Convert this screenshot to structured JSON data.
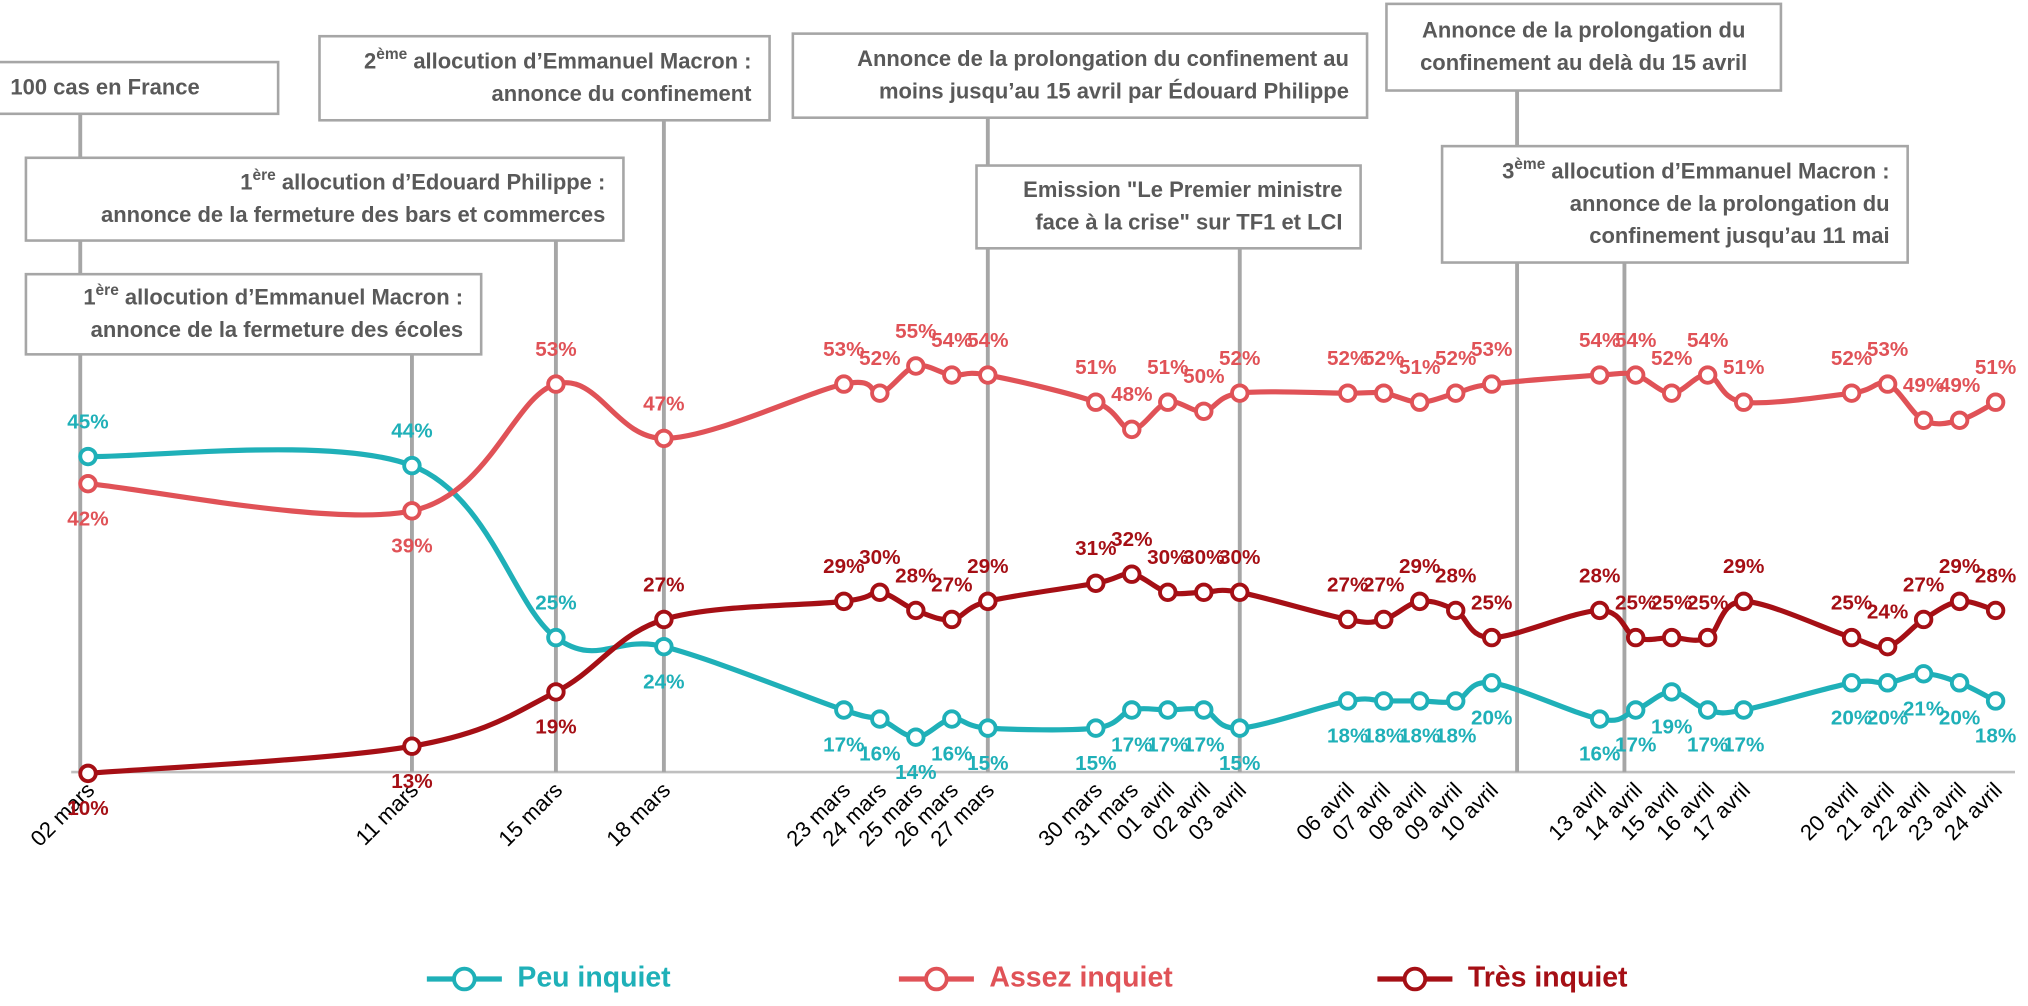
{
  "chart_data": {
    "type": "line",
    "categories": [
      "02 mars",
      "11 mars",
      "15 mars",
      "18 mars",
      "23 mars",
      "24 mars",
      "25 mars",
      "26 mars",
      "27 mars",
      "30 mars",
      "31 mars",
      "01 avril",
      "02 avril",
      "03 avril",
      "06 avril",
      "07 avril",
      "08 avril",
      "09 avril",
      "10 avril",
      "13 avril",
      "14 avril",
      "15 avril",
      "16 avril",
      "17 avril",
      "20 avril",
      "21 avril",
      "22 avril",
      "23 avril",
      "24 avril"
    ],
    "series": [
      {
        "name": "Peu inquiet",
        "color": "#1fb0b8",
        "values": [
          45,
          44,
          25,
          24,
          17,
          16,
          14,
          16,
          15,
          15,
          17,
          17,
          17,
          15,
          18,
          18,
          18,
          18,
          20,
          16,
          17,
          19,
          17,
          17,
          20,
          20,
          21,
          20,
          18
        ],
        "value_labels": [
          "45%",
          "44%",
          "25%",
          "24%",
          "17%",
          "16%",
          "14%",
          "16%",
          "15%",
          "15%",
          "17%",
          "17%",
          "17%",
          "15%",
          "18%",
          "18%",
          "18%",
          "18%",
          "20%",
          "16%",
          "17%",
          "19%",
          "17%",
          "17%",
          "20%",
          "20%",
          "21%",
          "20%",
          "18%"
        ]
      },
      {
        "name": "Assez inquiet",
        "color": "#e05257",
        "values": [
          42,
          39,
          53,
          47,
          53,
          52,
          55,
          54,
          54,
          51,
          48,
          51,
          50,
          52,
          52,
          52,
          51,
          52,
          53,
          54,
          54,
          52,
          54,
          51,
          52,
          53,
          49,
          49,
          51
        ],
        "value_labels": [
          "42%",
          "39%",
          "53%",
          "47%",
          "53%",
          "52%",
          "55%",
          "54%",
          "54%",
          "51%",
          "48%",
          "51%",
          "50%",
          "52%",
          "52%",
          "52%",
          "51%",
          "52%",
          "53%",
          "54%",
          "54%",
          "52%",
          "54%",
          "51%",
          "52%",
          "53%",
          "49%",
          "49%",
          "51%"
        ]
      },
      {
        "name": "Très inquiet",
        "color": "#a50f15",
        "values": [
          10,
          13,
          19,
          27,
          29,
          30,
          28,
          27,
          29,
          31,
          32,
          30,
          30,
          30,
          27,
          27,
          29,
          28,
          25,
          28,
          25,
          25,
          25,
          29,
          25,
          24,
          27,
          29,
          28
        ],
        "value_labels": [
          "10%",
          "13%",
          "19%",
          "27%",
          "29%",
          "30%",
          "28%",
          "27%",
          "29%",
          "31%",
          "32%",
          "30%",
          "30%",
          "30%",
          "27%",
          "27%",
          "29%",
          "28%",
          "25%",
          "28%",
          "25%",
          "25%",
          "25%",
          "29%",
          "25%",
          "24%",
          "27%",
          "29%",
          "28%"
        ]
      }
    ],
    "ylim": [
      5,
      90
    ],
    "annotations": [
      {
        "date": "02 mars",
        "lines": [
          "100 cas en France"
        ]
      },
      {
        "date": "11 mars",
        "num": "1",
        "sup": "ère",
        "lines": [
          " allocution d’Emmanuel Macron :",
          "annonce de la fermeture des écoles"
        ]
      },
      {
        "date": "15 mars",
        "num": "1",
        "sup": "ère",
        "lines": [
          " allocution d’Edouard Philippe :",
          "annonce de la fermeture des bars et commerces"
        ]
      },
      {
        "date": "18 mars",
        "num": "2",
        "sup": "ème",
        "lines": [
          " allocution d’Emmanuel Macron :",
          "annonce du confinement"
        ]
      },
      {
        "date": "27 mars",
        "lines": [
          "Annonce de la prolongation du  confinement au",
          "moins jusqu’au 15 avril par Édouard Philippe"
        ]
      },
      {
        "date": "03 avril",
        "lines": [
          "Emission \"Le Premier ministre",
          "face à la crise\" sur TF1 et LCI"
        ]
      },
      {
        "date": "10 avril",
        "lines": [
          "Annonce de la prolongation du",
          "confinement au delà du 15 avril"
        ]
      },
      {
        "date": "13 avril",
        "num": "3",
        "sup": "ème",
        "lines": [
          " allocution d’Emmanuel Macron :",
          "annonce de la prolongation du",
          "confinement jusqu’au 11 mai"
        ]
      }
    ]
  }
}
